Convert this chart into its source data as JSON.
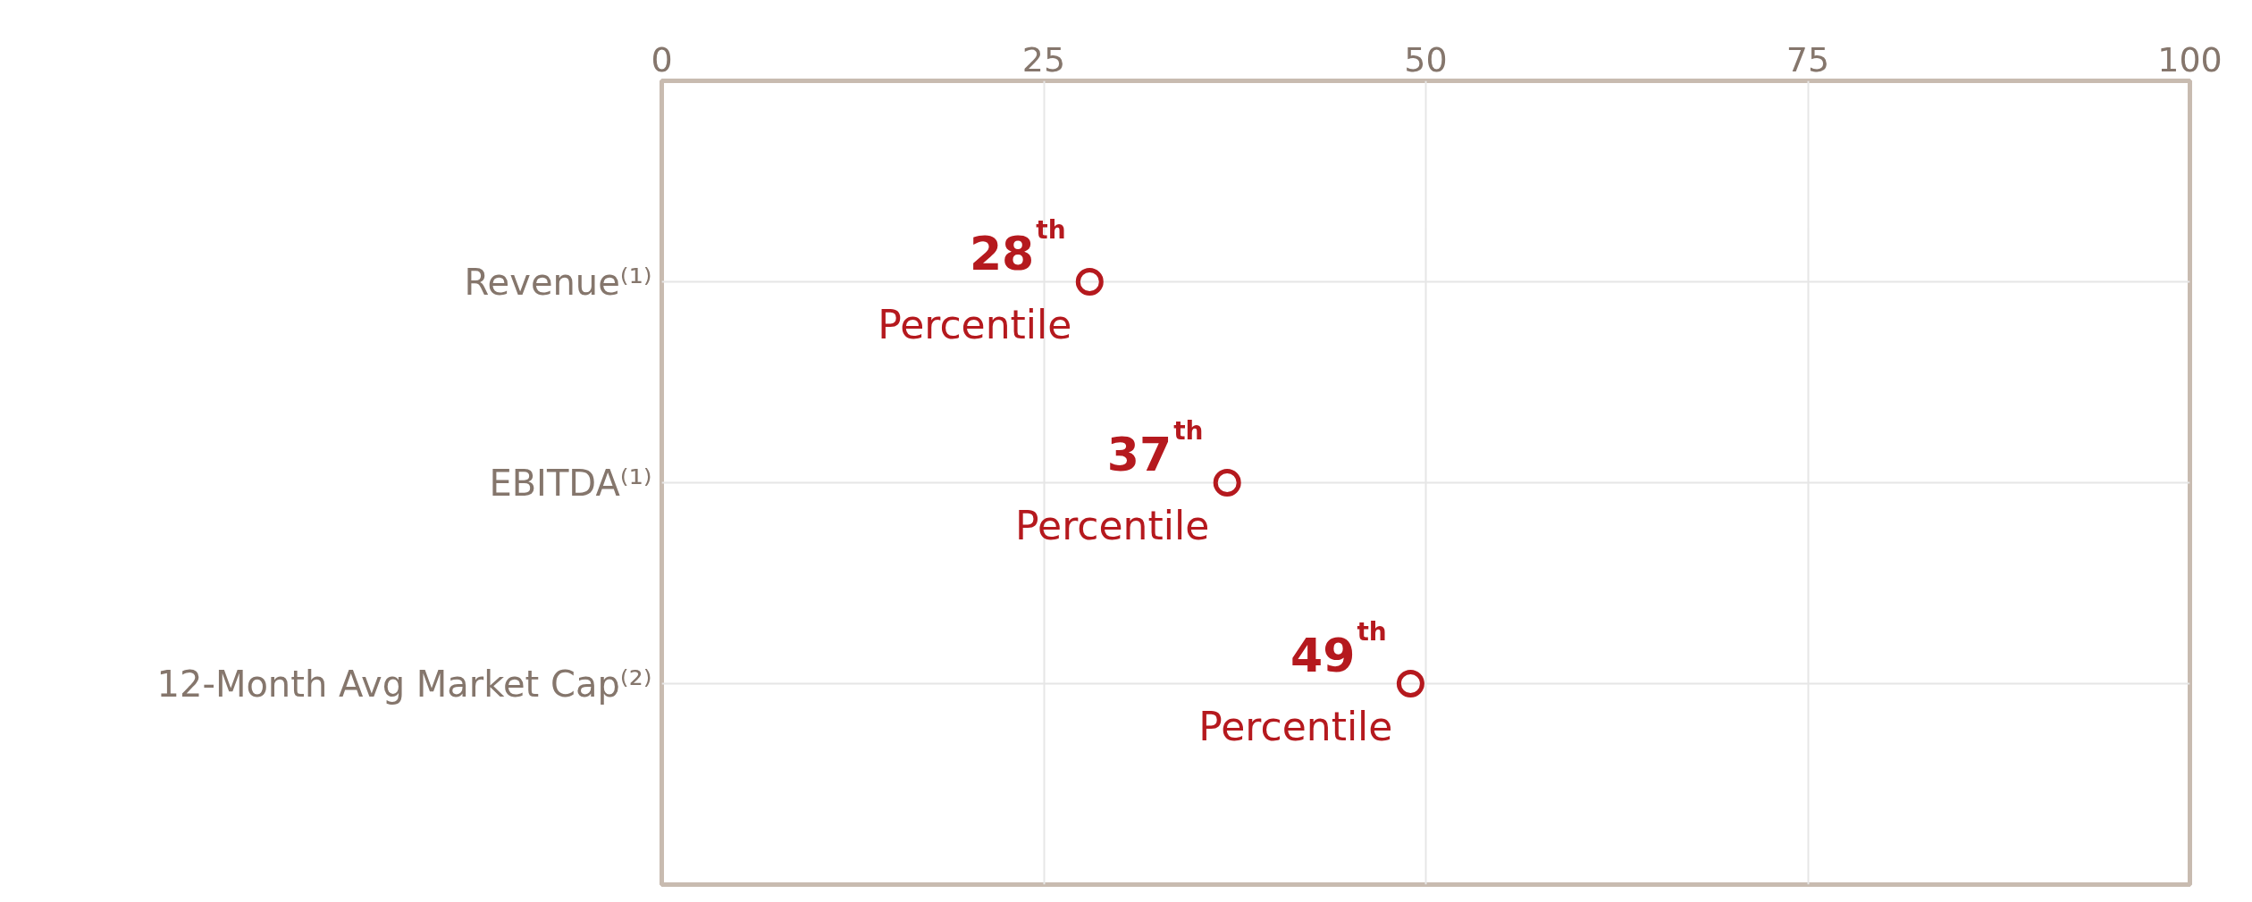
{
  "chart_data": {
    "type": "scatter",
    "orientation": "horizontal",
    "categories": [
      "Revenue⁽¹⁾",
      "EBITDA⁽¹⁾",
      "12-Month Avg Market Cap⁽²⁾"
    ],
    "series": [
      {
        "color": "#b5191e",
        "values": [
          28,
          37,
          49
        ],
        "value_labels": [
          "28$^{th}$ Percentile",
          "37$^{th}$ Percentile",
          "49$^{th}$ Percentile"
        ]
      }
    ],
    "xlim": [
      0,
      100
    ],
    "xticks": [
      0,
      25,
      50,
      75,
      100
    ],
    "grid": true,
    "marker": "circle"
  }
}
